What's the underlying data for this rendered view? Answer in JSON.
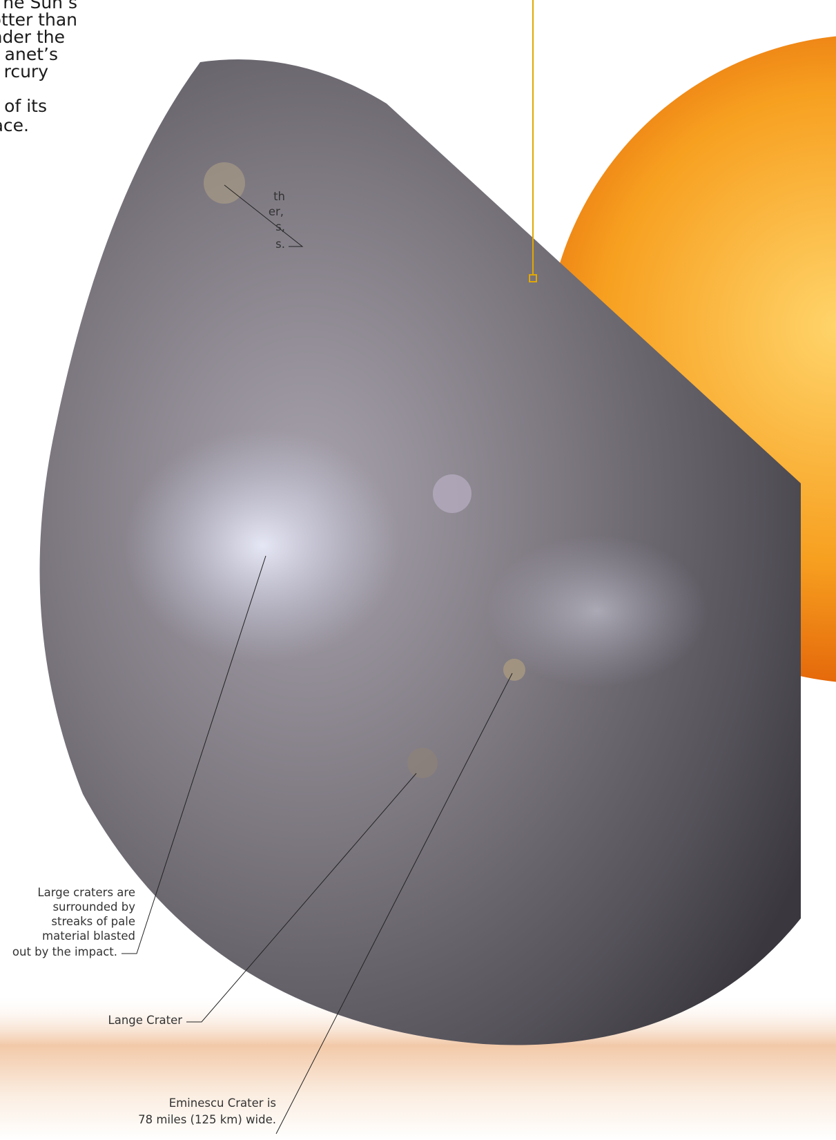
{
  "intro": {
    "lines": [
      "he Sun’s",
      "otter than",
      "nder the",
      "anet’s",
      "rcury",
      "of its",
      "ace."
    ]
  },
  "callouts": [
    {
      "lines": [
        "th",
        "er,",
        "s,",
        "s."
      ]
    },
    {
      "lines": [
        "Large craters are",
        "surrounded by",
        "streaks of pale",
        "material blasted",
        "out by the impact."
      ]
    },
    {
      "lines": [
        "Lange Crater"
      ]
    },
    {
      "lines": [
        "Eminescu Crater is",
        "78 miles (125 km) wide."
      ]
    }
  ]
}
